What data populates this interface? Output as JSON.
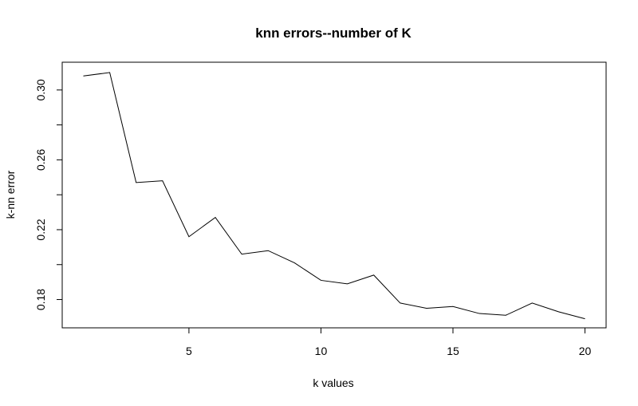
{
  "chart_data": {
    "type": "line",
    "title": "knn errors--number of K",
    "xlabel": "k values",
    "ylabel": "k-nn error",
    "x": [
      1,
      2,
      3,
      4,
      5,
      6,
      7,
      8,
      9,
      10,
      11,
      12,
      13,
      14,
      15,
      16,
      17,
      18,
      19,
      20
    ],
    "series": [
      {
        "values": [
          0.308,
          0.31,
          0.247,
          0.248,
          0.216,
          0.227,
          0.206,
          0.208,
          0.201,
          0.191,
          0.189,
          0.194,
          0.178,
          0.175,
          0.176,
          0.172,
          0.171,
          0.178,
          0.173,
          0.169
        ]
      }
    ],
    "xlim": [
      0.2,
      20.8
    ],
    "ylim": [
      0.1638,
      0.3159
    ],
    "xticks": [
      5,
      10,
      15,
      20
    ],
    "xtick_labels": [
      "5",
      "10",
      "15",
      "20"
    ],
    "yticks": [
      0.18,
      0.2,
      0.22,
      0.24,
      0.26,
      0.28,
      0.3
    ],
    "ytick_labels": [
      "0.18",
      "",
      "0.22",
      "",
      "0.26",
      "",
      "0.30"
    ],
    "grid": false,
    "line_color": "#000000"
  }
}
